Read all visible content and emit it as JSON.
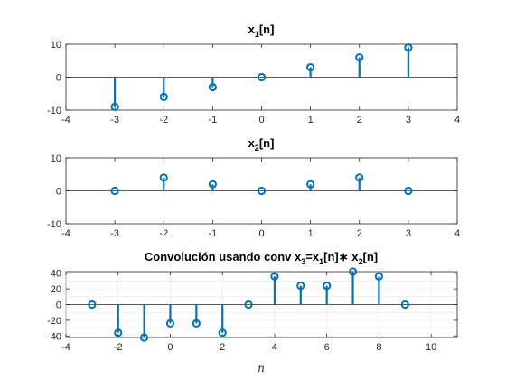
{
  "chart_data": [
    {
      "type": "stem",
      "title": "x_1[n]",
      "title_parts": {
        "base": "x",
        "sub": "1",
        "rest": "[n]"
      },
      "x": [
        -3,
        -2,
        -1,
        0,
        1,
        2,
        3
      ],
      "values": [
        -9,
        -6,
        -3,
        0,
        3,
        6,
        9
      ],
      "xlim": [
        -4,
        4
      ],
      "ylim": [
        -10,
        10
      ],
      "xticks": [
        -4,
        -3,
        -2,
        -1,
        0,
        1,
        2,
        3,
        4
      ],
      "yticks": [
        -10,
        0,
        10
      ],
      "xlabel": "",
      "ylabel": "",
      "grid": false
    },
    {
      "type": "stem",
      "title": "x_2[n]",
      "title_parts": {
        "base": "x",
        "sub": "2",
        "rest": "[n]"
      },
      "x": [
        -3,
        -2,
        -1,
        0,
        1,
        2,
        3
      ],
      "values": [
        0,
        4,
        2,
        0,
        2,
        4,
        0
      ],
      "xlim": [
        -4,
        4
      ],
      "ylim": [
        -10,
        10
      ],
      "xticks": [
        -4,
        -3,
        -2,
        -1,
        0,
        1,
        2,
        3,
        4
      ],
      "yticks": [
        -10,
        0,
        10
      ],
      "xlabel": "",
      "ylabel": "",
      "grid": false
    },
    {
      "type": "stem",
      "title": "Convolución usando conv x_3=x_1[n]∗x_2[n]",
      "title_parts": {
        "prefix": "Convolución usando conv x",
        "sub1": "3",
        "mid": "=x",
        "sub2": "1",
        "mid2": "[n]∗ x",
        "sub3": "2",
        "rest": "[n]"
      },
      "x": [
        -3,
        -2,
        -1,
        0,
        1,
        2,
        3,
        4,
        5,
        6,
        7,
        8,
        9
      ],
      "values": [
        0,
        -36,
        -42,
        -24,
        -24,
        -36,
        0,
        36,
        24,
        24,
        42,
        36,
        0
      ],
      "xlim": [
        -4,
        11
      ],
      "ylim": [
        -42,
        42
      ],
      "xticks": [
        -4,
        -2,
        0,
        2,
        4,
        6,
        8,
        10
      ],
      "yticks": [
        -40,
        -20,
        0,
        20,
        40
      ],
      "minor_yticks": [
        -30,
        -10,
        10,
        30
      ],
      "xlabel": "n",
      "ylabel": "",
      "grid": true
    }
  ],
  "colors": {
    "stem": "#0072bd",
    "axes": "#262626",
    "grid": "#e6e6e6"
  }
}
